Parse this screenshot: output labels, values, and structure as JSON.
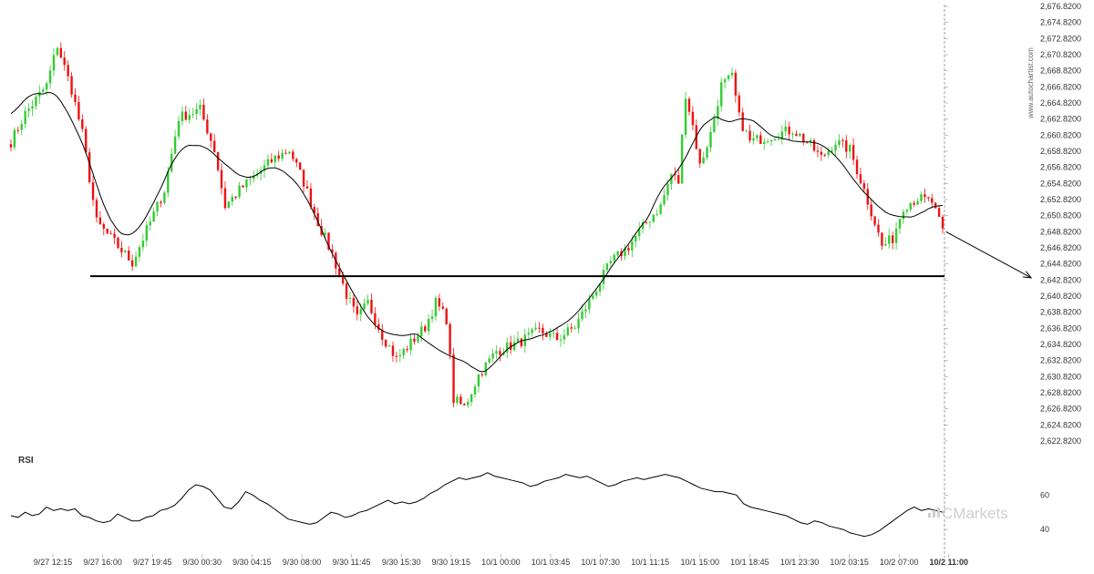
{
  "chart_data": {
    "type": "candlestick",
    "watermark": "www.autochartist.com",
    "brand": "ICMarkets",
    "y_axis": {
      "min": 2622.82,
      "max": 2676.82,
      "ticks": [
        "2,676.8200",
        "2,674.8200",
        "2,672.8200",
        "2,670.8200",
        "2,668.8200",
        "2,666.8200",
        "2,664.8200",
        "2,662.8200",
        "2,660.8200",
        "2,658.8200",
        "2,656.8200",
        "2,654.8200",
        "2,652.8200",
        "2,650.8200",
        "2,648.8200",
        "2,646.8200",
        "2,644.8200",
        "2,642.8200",
        "2,640.8200",
        "2,638.8200",
        "2,636.8200",
        "2,634.8200",
        "2,632.8200",
        "2,630.8200",
        "2,628.8200",
        "2,626.8200",
        "2,624.8200",
        "2,622.8200"
      ]
    },
    "x_labels": [
      "9/27 12:15",
      "9/27 16:00",
      "9/27 19:45",
      "9/30 00:30",
      "9/30 04:15",
      "9/30 08:00",
      "9/30 11:45",
      "9/30 15:30",
      "9/30 19:15",
      "10/1 00:00",
      "10/1 03:45",
      "10/1 07:30",
      "10/1 11:15",
      "10/1 15:00",
      "10/1 18:45",
      "10/1 23:30",
      "10/2 03:15",
      "10/2 07:00",
      "10/2 11:00"
    ],
    "last_label_index": 18,
    "support_level": 2643.3,
    "projection": {
      "from": 2648.8,
      "to": 2643.1
    },
    "colors": {
      "up": "#33cc33",
      "down": "#ee1111",
      "ma": "#000000",
      "support": "#000000",
      "rsi": "#000000"
    },
    "price_anchors": [
      [
        0,
        2660.0
      ],
      [
        4,
        2663.5
      ],
      [
        10,
        2667.0
      ],
      [
        13,
        2672.0
      ],
      [
        17,
        2666.5
      ],
      [
        20,
        2661.0
      ],
      [
        24,
        2650.0
      ],
      [
        30,
        2647.0
      ],
      [
        34,
        2645.0
      ],
      [
        38,
        2649.0
      ],
      [
        43,
        2654.0
      ],
      [
        47,
        2663.0
      ],
      [
        53,
        2664.0
      ],
      [
        57,
        2659.0
      ],
      [
        60,
        2652.0
      ],
      [
        64,
        2654.0
      ],
      [
        69,
        2656.0
      ],
      [
        74,
        2658.0
      ],
      [
        78,
        2659.0
      ],
      [
        82,
        2655.0
      ],
      [
        86,
        2650.0
      ],
      [
        90,
        2646.0
      ],
      [
        94,
        2641.0
      ],
      [
        97,
        2638.0
      ],
      [
        100,
        2640.0
      ],
      [
        104,
        2636.0
      ],
      [
        108,
        2633.0
      ],
      [
        112,
        2635.0
      ],
      [
        116,
        2637.0
      ],
      [
        119,
        2640.0
      ],
      [
        122,
        2638.0
      ],
      [
        124,
        2628.0
      ],
      [
        127,
        2627.0
      ],
      [
        131,
        2631.0
      ],
      [
        136,
        2634.0
      ],
      [
        142,
        2635.0
      ],
      [
        148,
        2636.5
      ],
      [
        153,
        2635.5
      ],
      [
        158,
        2637.0
      ],
      [
        163,
        2641.0
      ],
      [
        168,
        2645.0
      ],
      [
        173,
        2647.0
      ],
      [
        178,
        2650.0
      ],
      [
        182,
        2652.0
      ],
      [
        185,
        2656.0
      ],
      [
        187,
        2655.0
      ],
      [
        189,
        2666.0
      ],
      [
        191,
        2662.0
      ],
      [
        193,
        2657.0
      ],
      [
        196,
        2661.0
      ],
      [
        199,
        2667.0
      ],
      [
        202,
        2668.0
      ],
      [
        204,
        2663.0
      ],
      [
        207,
        2660.0
      ],
      [
        211,
        2660.5
      ],
      [
        215,
        2661.0
      ],
      [
        219,
        2661.5
      ],
      [
        223,
        2660.0
      ],
      [
        227,
        2658.0
      ],
      [
        231,
        2660.0
      ],
      [
        235,
        2659.0
      ],
      [
        239,
        2654.0
      ],
      [
        242,
        2650.0
      ],
      [
        244,
        2647.0
      ],
      [
        247,
        2648.0
      ],
      [
        250,
        2652.0
      ],
      [
        254,
        2653.0
      ],
      [
        258,
        2652.5
      ],
      [
        261,
        2648.8
      ]
    ],
    "rsi": {
      "title": "RSI",
      "levels": [
        60,
        40
      ],
      "values": [
        48,
        47,
        50,
        48,
        49,
        53,
        51,
        52,
        51,
        52,
        48,
        47,
        45,
        44,
        45,
        49,
        47,
        45,
        45,
        47,
        48,
        51,
        52,
        54,
        58,
        63,
        66,
        65,
        63,
        58,
        53,
        52,
        56,
        62,
        60,
        57,
        55,
        52,
        49,
        46,
        45,
        44,
        43,
        44,
        47,
        50,
        49,
        47,
        48,
        50,
        51,
        53,
        55,
        57,
        55,
        56,
        55,
        56,
        58,
        61,
        63,
        66,
        68,
        70,
        69,
        70,
        71,
        73,
        71,
        70,
        69,
        68,
        67,
        65,
        66,
        68,
        69,
        70,
        72,
        71,
        70,
        71,
        69,
        67,
        65,
        66,
        68,
        69,
        70,
        69,
        70,
        71,
        72,
        71,
        70,
        68,
        66,
        64,
        63,
        62,
        62,
        61,
        60,
        55,
        53,
        52,
        51,
        50,
        49,
        48,
        46,
        44,
        43,
        45,
        44,
        42,
        41,
        40,
        38,
        37,
        36,
        37,
        39,
        42,
        45,
        48,
        51,
        53,
        51,
        52,
        51,
        50
      ]
    }
  }
}
